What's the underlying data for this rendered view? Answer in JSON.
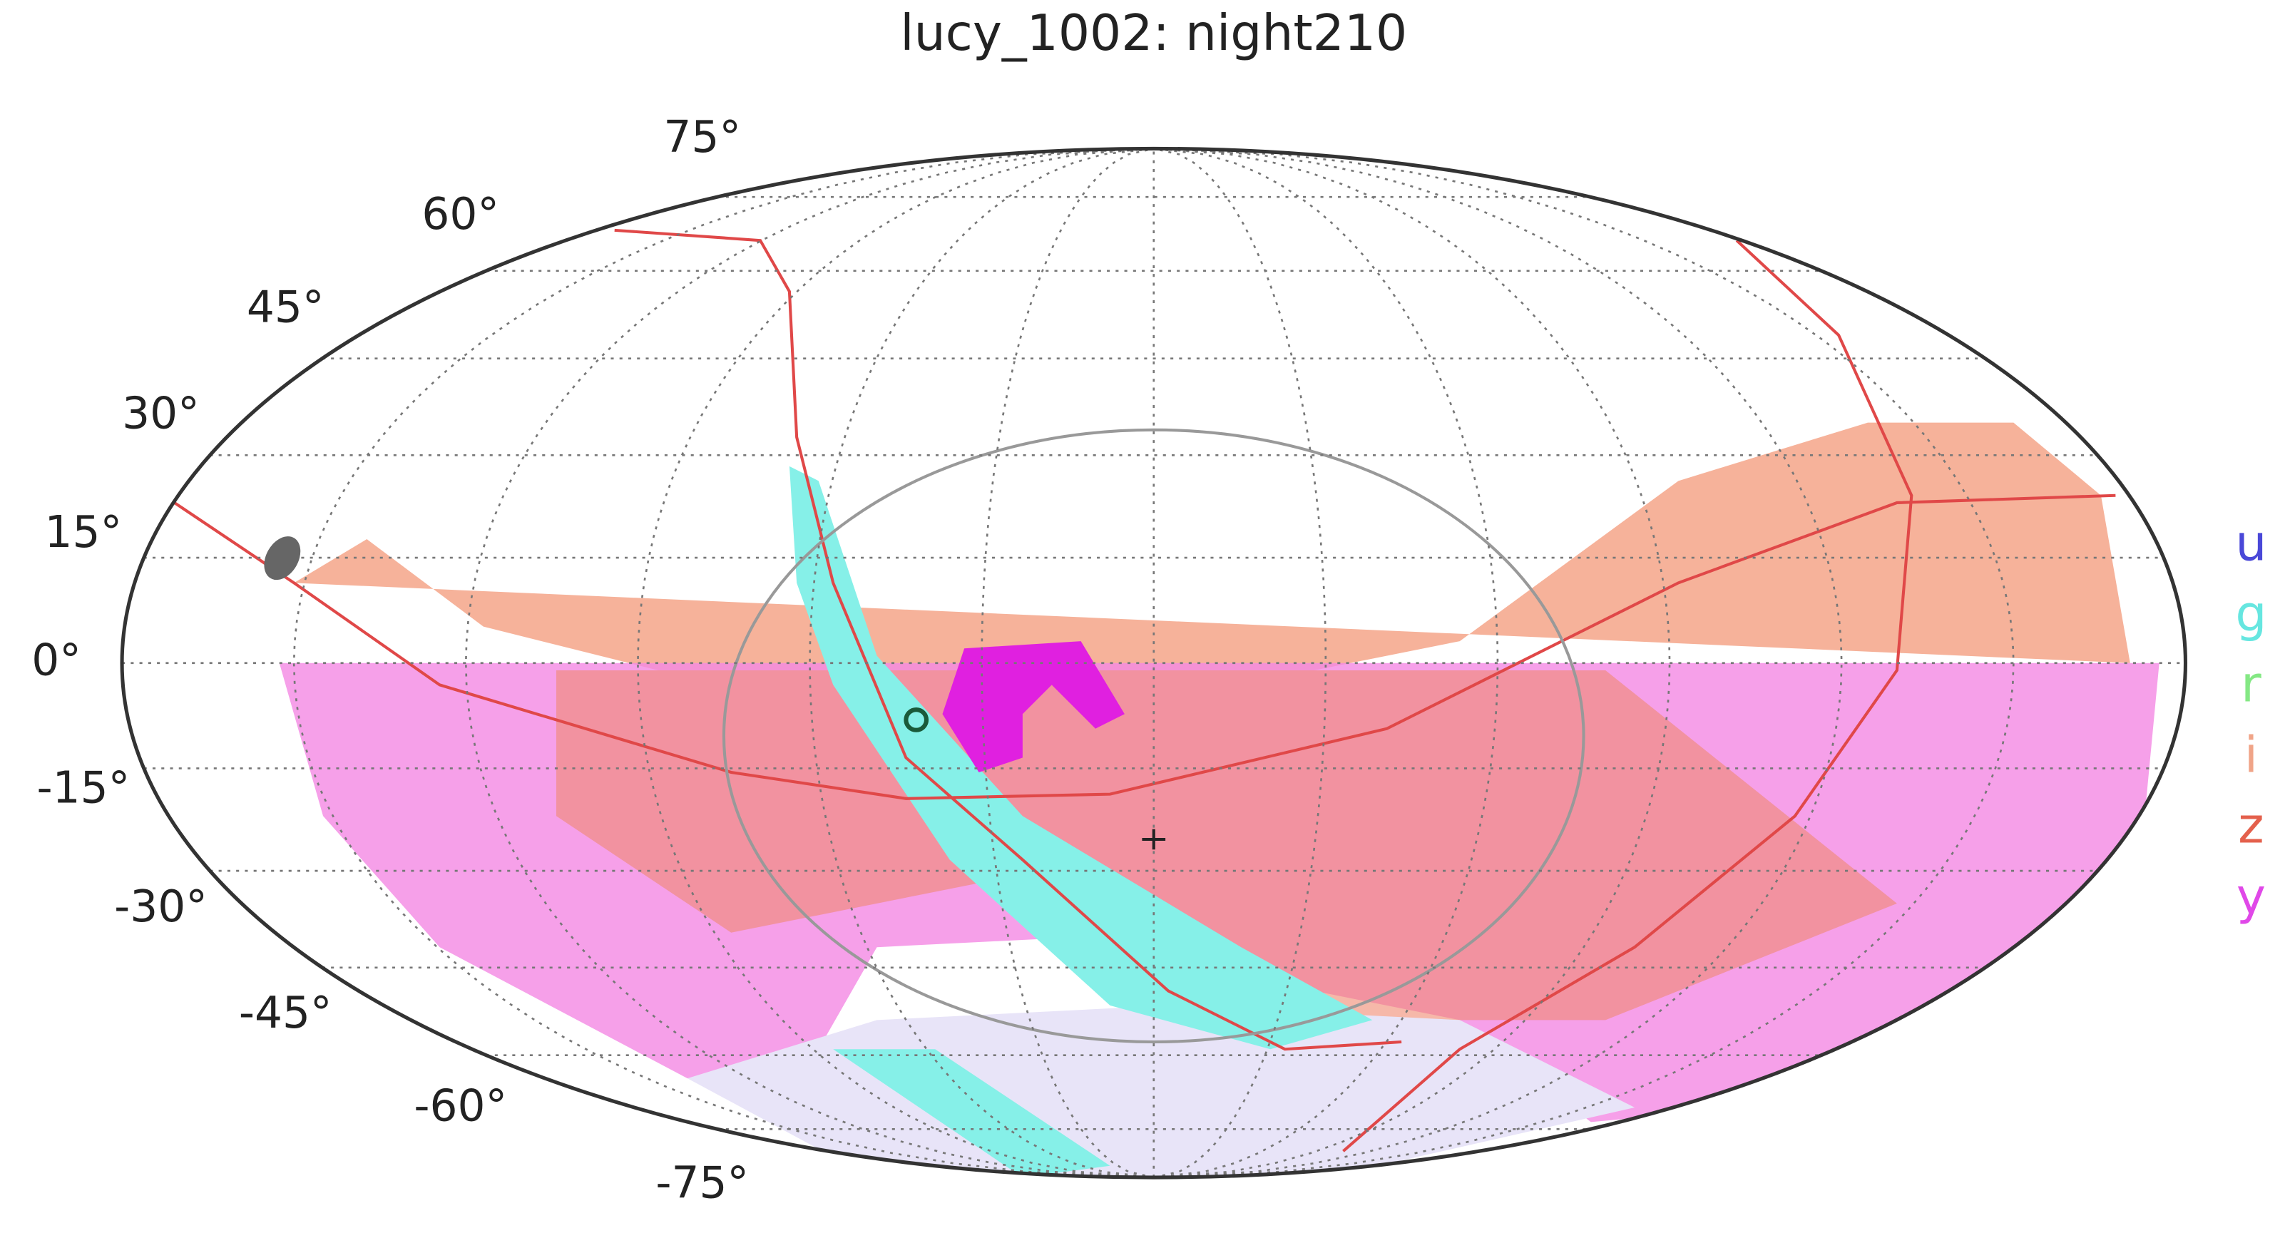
{
  "chart_data": {
    "type": "mollweide",
    "title": "lucy_1002: night210",
    "yticks": [
      {
        "value": 75,
        "label": "75°"
      },
      {
        "value": 60,
        "label": "60°"
      },
      {
        "value": 45,
        "label": "45°"
      },
      {
        "value": 30,
        "label": "30°"
      },
      {
        "value": 15,
        "label": "15°"
      },
      {
        "value": 0,
        "label": "0°"
      },
      {
        "value": -15,
        "label": "-15°"
      },
      {
        "value": -30,
        "label": "-30°"
      },
      {
        "value": -45,
        "label": "-45°"
      },
      {
        "value": -60,
        "label": "-60°"
      },
      {
        "value": -75,
        "label": "-75°"
      }
    ],
    "ylim": [
      -90,
      90
    ],
    "grid": true,
    "series": [
      {
        "name": "u",
        "color": "#4a48d8"
      },
      {
        "name": "g",
        "color": "#66e6e0"
      },
      {
        "name": "r",
        "color": "#84e884"
      },
      {
        "name": "i",
        "color": "#f0a488"
      },
      {
        "name": "z",
        "color": "#e4604c"
      },
      {
        "name": "y",
        "color": "#e048e8"
      }
    ]
  }
}
